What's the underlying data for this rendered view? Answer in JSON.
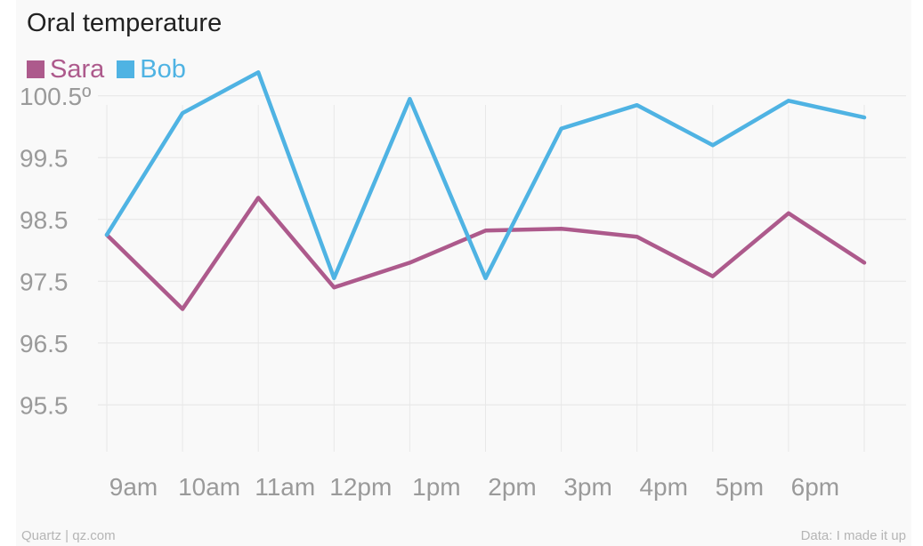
{
  "chart_data": {
    "type": "line",
    "title": "Oral temperature",
    "categories": [
      "9am",
      "10am",
      "11am",
      "12pm",
      "1pm",
      "2pm",
      "3pm",
      "4pm",
      "5pm",
      "6pm",
      ""
    ],
    "x_tick_labels": [
      "9am",
      "10am",
      "11am",
      "12pm",
      "1pm",
      "2pm",
      "3pm",
      "4pm",
      "5pm",
      "6pm"
    ],
    "y_ticks": [
      95.5,
      96.5,
      97.5,
      98.5,
      99.5,
      100.5
    ],
    "y_tick_labels": [
      "95.5",
      "96.5",
      "97.5",
      "98.5",
      "99.5",
      "100.5º"
    ],
    "ylim": [
      95.0,
      101.0
    ],
    "grid": true,
    "legend_position": "top-left",
    "series": [
      {
        "name": "Sara",
        "color": "#ad5a8c",
        "values": [
          98.25,
          97.05,
          98.85,
          97.4,
          97.8,
          98.32,
          98.35,
          98.22,
          97.58,
          98.6,
          97.8
        ]
      },
      {
        "name": "Bob",
        "color": "#4fb3e3",
        "values": [
          98.25,
          100.22,
          100.88,
          97.55,
          100.45,
          97.55,
          99.97,
          100.35,
          99.7,
          100.42,
          100.15
        ]
      }
    ]
  },
  "footer": {
    "source_left": "Quartz | qz.com",
    "source_right": "Data: I made it up"
  }
}
